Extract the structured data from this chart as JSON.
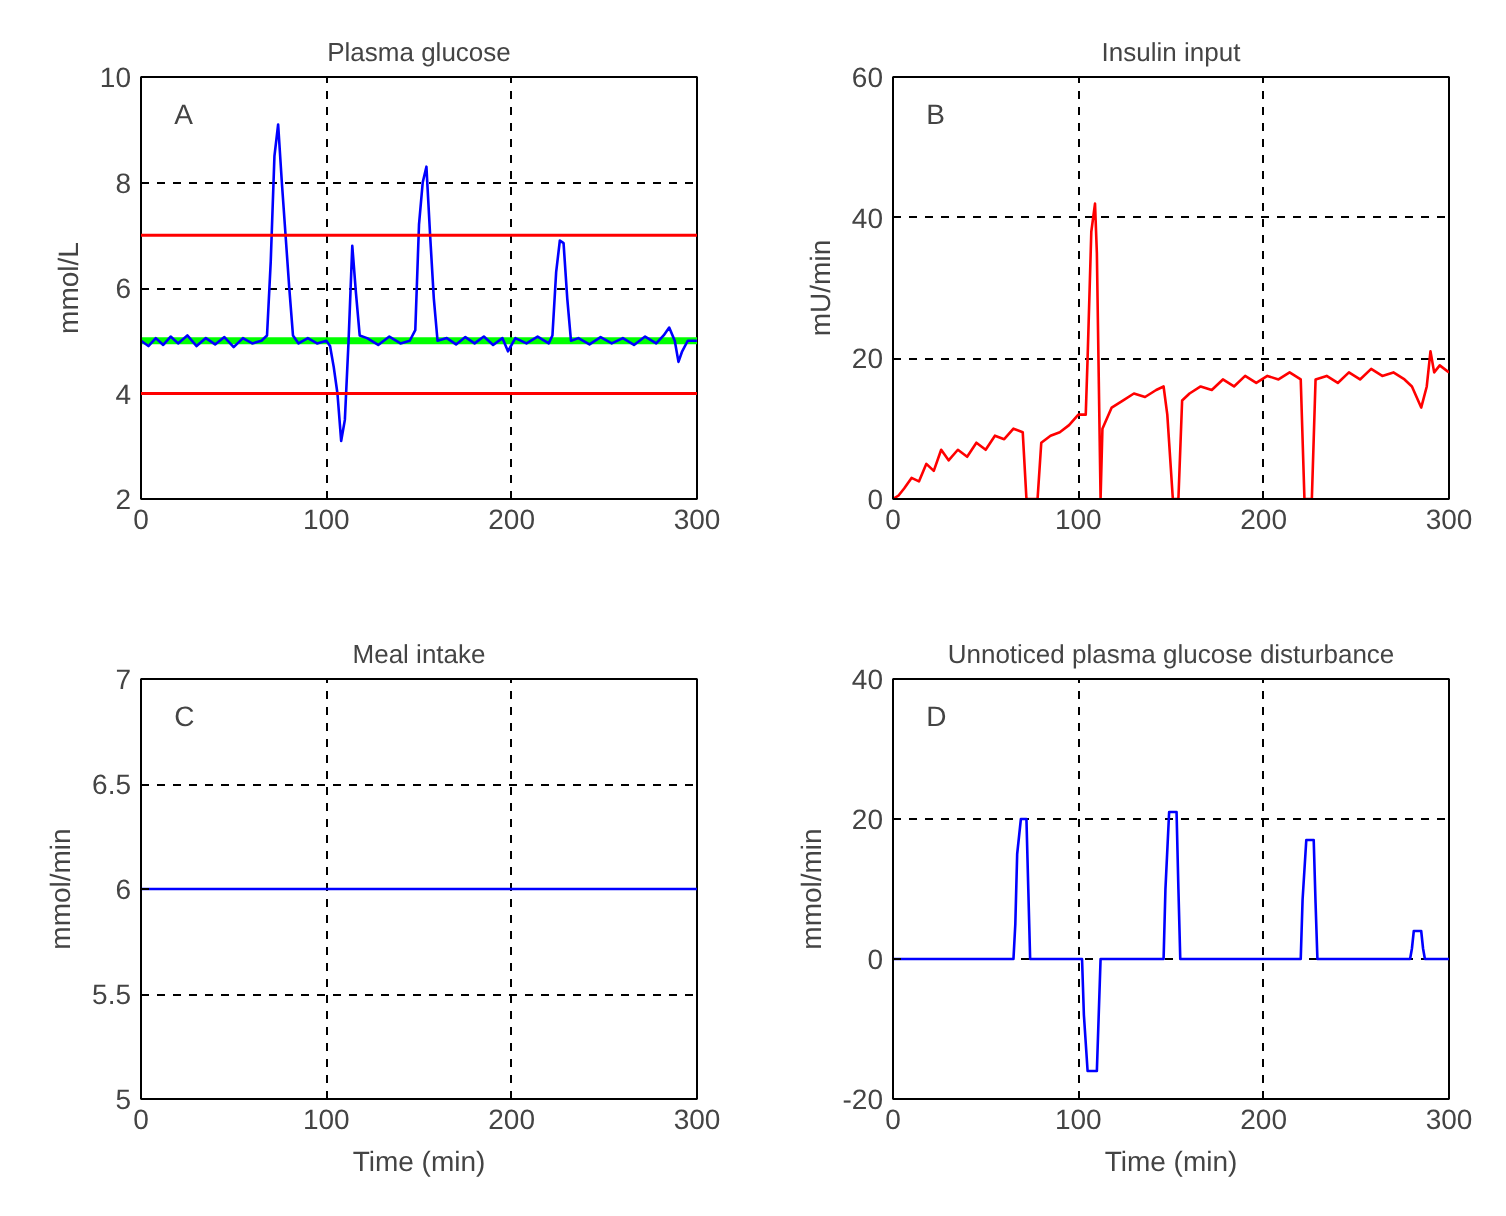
{
  "chart_data": [
    {
      "type": "line",
      "title": "Plasma glucose",
      "ylabel": "mmol/L",
      "annotations": [
        "A"
      ],
      "xlim": [
        0,
        300
      ],
      "ylim": [
        2,
        10
      ],
      "xticks": [
        0,
        100,
        200,
        300
      ],
      "yticks": [
        2,
        4,
        6,
        8,
        10
      ],
      "grid": true,
      "line_style": "solid",
      "series": [
        {
          "color": "#00ff00",
          "x": [
            0,
            300
          ],
          "values": [
            5,
            5
          ]
        },
        {
          "color": "#0000ff",
          "x": [
            0,
            4,
            8,
            12,
            16,
            20,
            25,
            30,
            35,
            40,
            45,
            50,
            55,
            60,
            65,
            68,
            70,
            72,
            74,
            76,
            78,
            80,
            82,
            85,
            90,
            95,
            100,
            102,
            104,
            106,
            108,
            110,
            112,
            114,
            116,
            118,
            122,
            128,
            134,
            140,
            145,
            148,
            150,
            152,
            154,
            156,
            158,
            160,
            165,
            170,
            175,
            180,
            185,
            190,
            195,
            198,
            202,
            208,
            214,
            220,
            222,
            224,
            226,
            228,
            230,
            232,
            236,
            242,
            248,
            254,
            260,
            266,
            272,
            278,
            282,
            285,
            288,
            290,
            292,
            295,
            300
          ],
          "values": [
            5.0,
            4.9,
            5.05,
            4.92,
            5.08,
            4.95,
            5.1,
            4.9,
            5.05,
            4.93,
            5.07,
            4.88,
            5.05,
            4.95,
            5.0,
            5.1,
            6.5,
            8.5,
            9.1,
            8.0,
            7.0,
            6.0,
            5.1,
            4.95,
            5.05,
            4.95,
            5.0,
            4.9,
            4.5,
            4.0,
            3.1,
            3.5,
            5.0,
            6.8,
            5.9,
            5.1,
            5.05,
            4.92,
            5.08,
            4.95,
            5.0,
            5.2,
            7.2,
            8.0,
            8.3,
            7.0,
            5.8,
            5.0,
            5.05,
            4.93,
            5.07,
            4.95,
            5.08,
            4.92,
            5.05,
            4.8,
            5.05,
            4.95,
            5.08,
            4.95,
            5.1,
            6.3,
            6.9,
            6.85,
            5.8,
            5.0,
            5.05,
            4.93,
            5.07,
            4.95,
            5.05,
            4.92,
            5.08,
            4.95,
            5.1,
            5.25,
            5.0,
            4.6,
            4.8,
            5.0,
            5.0
          ]
        }
      ],
      "ref_lines": [
        {
          "axis": "y",
          "value": 7,
          "color": "#ff0000"
        },
        {
          "axis": "y",
          "value": 4,
          "color": "#ff0000"
        }
      ]
    },
    {
      "type": "line",
      "title": "Insulin input",
      "ylabel": "mU/min",
      "annotations": [
        "B"
      ],
      "xlim": [
        0,
        300
      ],
      "ylim": [
        0,
        60
      ],
      "xticks": [
        0,
        100,
        200,
        300
      ],
      "yticks": [
        0,
        20,
        40,
        60
      ],
      "grid": true,
      "line_style": "solid",
      "series": [
        {
          "color": "#ff0000",
          "x": [
            0,
            3,
            6,
            10,
            14,
            18,
            22,
            26,
            30,
            35,
            40,
            45,
            50,
            55,
            60,
            65,
            70,
            72,
            78,
            80,
            85,
            90,
            95,
            100,
            104,
            105,
            107,
            109,
            110,
            112,
            113,
            118,
            124,
            130,
            136,
            142,
            146,
            148,
            151,
            154,
            156,
            160,
            166,
            172,
            178,
            184,
            190,
            196,
            202,
            208,
            214,
            220,
            222,
            226,
            228,
            234,
            240,
            246,
            252,
            258,
            264,
            270,
            276,
            280,
            285,
            288,
            290,
            292,
            295,
            300
          ],
          "values": [
            0,
            0.5,
            1.5,
            3,
            2.5,
            5,
            4,
            7,
            5.5,
            7,
            6,
            8,
            7,
            9,
            8.5,
            10,
            9.5,
            0,
            0,
            8,
            9,
            9.5,
            10.5,
            12,
            12,
            20,
            38,
            42,
            35,
            0,
            10,
            13,
            14,
            15,
            14.5,
            15.5,
            16,
            12,
            0,
            0,
            14,
            15,
            16,
            15.5,
            17,
            16,
            17.5,
            16.5,
            17.5,
            17,
            18,
            17,
            0,
            0,
            17,
            17.5,
            16.5,
            18,
            17,
            18.5,
            17.5,
            18,
            17,
            16,
            13,
            16,
            21,
            18,
            19,
            18
          ]
        }
      ]
    },
    {
      "type": "line",
      "title": "Meal intake",
      "xlabel": "Time (min)",
      "ylabel": "mmol/min",
      "annotations": [
        "C"
      ],
      "xlim": [
        0,
        300
      ],
      "ylim": [
        5,
        7
      ],
      "xticks": [
        0,
        100,
        200,
        300
      ],
      "yticks": [
        5,
        5.5,
        6,
        6.5,
        7
      ],
      "grid": true,
      "line_style": "solid",
      "series": [
        {
          "color": "#0000ff",
          "x": [
            0,
            300
          ],
          "values": [
            6,
            6
          ]
        }
      ]
    },
    {
      "type": "line",
      "title": "Unnoticed plasma glucose disturbance",
      "xlabel": "Time (min)",
      "ylabel": "mmol/min",
      "annotations": [
        "D"
      ],
      "xlim": [
        0,
        300
      ],
      "ylim": [
        -20,
        40
      ],
      "xticks": [
        0,
        100,
        200,
        300
      ],
      "yticks": [
        -20,
        0,
        20,
        40
      ],
      "grid": true,
      "line_style": "solid",
      "series": [
        {
          "color": "#0000ff",
          "x": [
            0,
            65,
            66,
            67,
            69,
            72,
            73,
            74,
            102,
            103,
            105,
            110,
            111,
            112,
            146,
            147,
            149,
            153,
            154,
            155,
            220,
            221,
            223,
            227,
            228,
            229,
            279,
            280,
            281,
            285,
            286,
            287,
            300
          ],
          "values": [
            0,
            0,
            5,
            15,
            20,
            20,
            10,
            0,
            0,
            -8,
            -16,
            -16,
            -8,
            0,
            0,
            10,
            21,
            21,
            10,
            0,
            0,
            8.5,
            17,
            17,
            8,
            0,
            0,
            1.5,
            4,
            4,
            1.5,
            0,
            0
          ]
        }
      ]
    }
  ]
}
